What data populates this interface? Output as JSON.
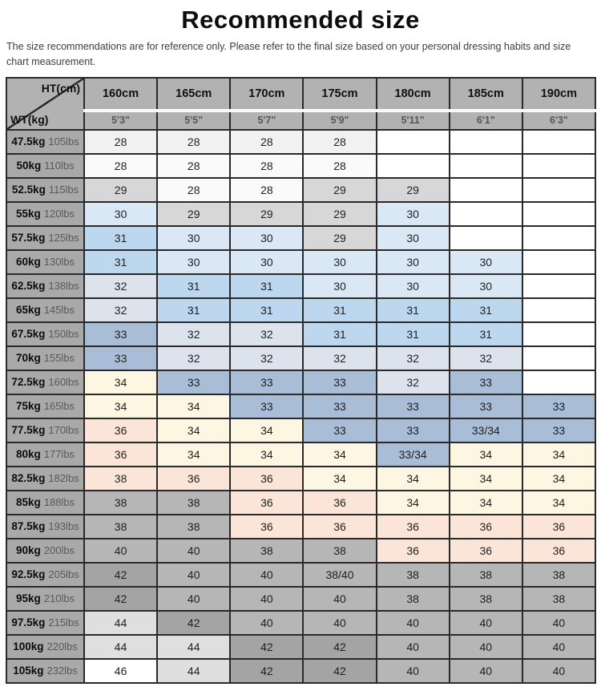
{
  "title": "Recommended size",
  "disclaimer": "The size recommendations are for reference only. Please refer to the final size based on your personal dressing habits and size chart measurement.",
  "table": {
    "corner": {
      "top_label": "HT(cm)",
      "bottom_label": "WT(kg)"
    },
    "height_columns": [
      {
        "cm": "160cm",
        "ft": "5'3\""
      },
      {
        "cm": "165cm",
        "ft": "5'5\""
      },
      {
        "cm": "170cm",
        "ft": "5'7\""
      },
      {
        "cm": "175cm",
        "ft": "5'9\""
      },
      {
        "cm": "180cm",
        "ft": "5'11\""
      },
      {
        "cm": "185cm",
        "ft": "6'1\""
      },
      {
        "cm": "190cm",
        "ft": "6'3\""
      }
    ],
    "palette": {
      "g0": "#f1f1f1",
      "w2": "#fafafa",
      "w": "#ffffff",
      "g1": "#d7d7d7",
      "b0": "#dae8f6",
      "b1": "#bdd7ee",
      "s0": "#dde3ed",
      "s1": "#a9bdd6",
      "c": "#fdf6e3",
      "p": "#fbe5d9",
      "g2": "#b6b6b6",
      "g3": "#a4a4a4",
      "g4": "#dfdfdf"
    },
    "rows": [
      {
        "kg": "47.5kg",
        "lbs": "105lbs",
        "cells": [
          {
            "v": "28",
            "c": "g0"
          },
          {
            "v": "28",
            "c": "g0"
          },
          {
            "v": "28",
            "c": "g0"
          },
          {
            "v": "28",
            "c": "g0"
          },
          {
            "v": "",
            "c": "w"
          },
          {
            "v": "",
            "c": "w"
          },
          {
            "v": "",
            "c": "w"
          }
        ]
      },
      {
        "kg": "50kg",
        "lbs": "110lbs",
        "cells": [
          {
            "v": "28",
            "c": "w2"
          },
          {
            "v": "28",
            "c": "w2"
          },
          {
            "v": "28",
            "c": "w2"
          },
          {
            "v": "28",
            "c": "w2"
          },
          {
            "v": "",
            "c": "w"
          },
          {
            "v": "",
            "c": "w"
          },
          {
            "v": "",
            "c": "w"
          }
        ]
      },
      {
        "kg": "52.5kg",
        "lbs": "115lbs",
        "cells": [
          {
            "v": "29",
            "c": "g1"
          },
          {
            "v": "28",
            "c": "w2"
          },
          {
            "v": "28",
            "c": "w2"
          },
          {
            "v": "29",
            "c": "g1"
          },
          {
            "v": "29",
            "c": "g1"
          },
          {
            "v": "",
            "c": "w"
          },
          {
            "v": "",
            "c": "w"
          }
        ]
      },
      {
        "kg": "55kg",
        "lbs": "120lbs",
        "cells": [
          {
            "v": "30",
            "c": "b0"
          },
          {
            "v": "29",
            "c": "g1"
          },
          {
            "v": "29",
            "c": "g1"
          },
          {
            "v": "29",
            "c": "g1"
          },
          {
            "v": "30",
            "c": "b0"
          },
          {
            "v": "",
            "c": "w"
          },
          {
            "v": "",
            "c": "w"
          }
        ]
      },
      {
        "kg": "57.5kg",
        "lbs": "125lbs",
        "cells": [
          {
            "v": "31",
            "c": "b1"
          },
          {
            "v": "30",
            "c": "b0"
          },
          {
            "v": "30",
            "c": "b0"
          },
          {
            "v": "29",
            "c": "g1"
          },
          {
            "v": "30",
            "c": "b0"
          },
          {
            "v": "",
            "c": "w"
          },
          {
            "v": "",
            "c": "w"
          }
        ]
      },
      {
        "kg": "60kg",
        "lbs": "130lbs",
        "cells": [
          {
            "v": "31",
            "c": "b1"
          },
          {
            "v": "30",
            "c": "b0"
          },
          {
            "v": "30",
            "c": "b0"
          },
          {
            "v": "30",
            "c": "b0"
          },
          {
            "v": "30",
            "c": "b0"
          },
          {
            "v": "30",
            "c": "b0"
          },
          {
            "v": "",
            "c": "w"
          }
        ]
      },
      {
        "kg": "62.5kg",
        "lbs": "138lbs",
        "cells": [
          {
            "v": "32",
            "c": "s0"
          },
          {
            "v": "31",
            "c": "b1"
          },
          {
            "v": "31",
            "c": "b1"
          },
          {
            "v": "30",
            "c": "b0"
          },
          {
            "v": "30",
            "c": "b0"
          },
          {
            "v": "30",
            "c": "b0"
          },
          {
            "v": "",
            "c": "w"
          }
        ]
      },
      {
        "kg": "65kg",
        "lbs": "145lbs",
        "cells": [
          {
            "v": "32",
            "c": "s0"
          },
          {
            "v": "31",
            "c": "b1"
          },
          {
            "v": "31",
            "c": "b1"
          },
          {
            "v": "31",
            "c": "b1"
          },
          {
            "v": "31",
            "c": "b1"
          },
          {
            "v": "31",
            "c": "b1"
          },
          {
            "v": "",
            "c": "w"
          }
        ]
      },
      {
        "kg": "67.5kg",
        "lbs": "150lbs",
        "cells": [
          {
            "v": "33",
            "c": "s1"
          },
          {
            "v": "32",
            "c": "s0"
          },
          {
            "v": "32",
            "c": "s0"
          },
          {
            "v": "31",
            "c": "b1"
          },
          {
            "v": "31",
            "c": "b1"
          },
          {
            "v": "31",
            "c": "b1"
          },
          {
            "v": "",
            "c": "w"
          }
        ]
      },
      {
        "kg": "70kg",
        "lbs": "155lbs",
        "cells": [
          {
            "v": "33",
            "c": "s1"
          },
          {
            "v": "32",
            "c": "s0"
          },
          {
            "v": "32",
            "c": "s0"
          },
          {
            "v": "32",
            "c": "s0"
          },
          {
            "v": "32",
            "c": "s0"
          },
          {
            "v": "32",
            "c": "s0"
          },
          {
            "v": "",
            "c": "w"
          }
        ]
      },
      {
        "kg": "72.5kg",
        "lbs": "160lbs",
        "cells": [
          {
            "v": "34",
            "c": "c"
          },
          {
            "v": "33",
            "c": "s1"
          },
          {
            "v": "33",
            "c": "s1"
          },
          {
            "v": "33",
            "c": "s1"
          },
          {
            "v": "32",
            "c": "s0"
          },
          {
            "v": "33",
            "c": "s1"
          },
          {
            "v": "",
            "c": "w"
          }
        ]
      },
      {
        "kg": "75kg",
        "lbs": "165lbs",
        "cells": [
          {
            "v": "34",
            "c": "c"
          },
          {
            "v": "34",
            "c": "c"
          },
          {
            "v": "33",
            "c": "s1"
          },
          {
            "v": "33",
            "c": "s1"
          },
          {
            "v": "33",
            "c": "s1"
          },
          {
            "v": "33",
            "c": "s1"
          },
          {
            "v": "33",
            "c": "s1"
          }
        ]
      },
      {
        "kg": "77.5kg",
        "lbs": "170lbs",
        "cells": [
          {
            "v": "36",
            "c": "p"
          },
          {
            "v": "34",
            "c": "c"
          },
          {
            "v": "34",
            "c": "c"
          },
          {
            "v": "33",
            "c": "s1"
          },
          {
            "v": "33",
            "c": "s1"
          },
          {
            "v": "33/34",
            "c": "s1"
          },
          {
            "v": "33",
            "c": "s1"
          }
        ]
      },
      {
        "kg": "80kg",
        "lbs": "177lbs",
        "cells": [
          {
            "v": "36",
            "c": "p"
          },
          {
            "v": "34",
            "c": "c"
          },
          {
            "v": "34",
            "c": "c"
          },
          {
            "v": "34",
            "c": "c"
          },
          {
            "v": "33/34",
            "c": "s1"
          },
          {
            "v": "34",
            "c": "c"
          },
          {
            "v": "34",
            "c": "c"
          }
        ]
      },
      {
        "kg": "82.5kg",
        "lbs": "182lbs",
        "cells": [
          {
            "v": "38",
            "c": "p"
          },
          {
            "v": "36",
            "c": "p"
          },
          {
            "v": "36",
            "c": "p"
          },
          {
            "v": "34",
            "c": "c"
          },
          {
            "v": "34",
            "c": "c"
          },
          {
            "v": "34",
            "c": "c"
          },
          {
            "v": "34",
            "c": "c"
          }
        ]
      },
      {
        "kg": "85kg",
        "lbs": "188lbs",
        "cells": [
          {
            "v": "38",
            "c": "g2"
          },
          {
            "v": "38",
            "c": "g2"
          },
          {
            "v": "36",
            "c": "p"
          },
          {
            "v": "36",
            "c": "p"
          },
          {
            "v": "34",
            "c": "c"
          },
          {
            "v": "34",
            "c": "c"
          },
          {
            "v": "34",
            "c": "c"
          }
        ]
      },
      {
        "kg": "87.5kg",
        "lbs": "193lbs",
        "cells": [
          {
            "v": "38",
            "c": "g2"
          },
          {
            "v": "38",
            "c": "g2"
          },
          {
            "v": "36",
            "c": "p"
          },
          {
            "v": "36",
            "c": "p"
          },
          {
            "v": "36",
            "c": "p"
          },
          {
            "v": "36",
            "c": "p"
          },
          {
            "v": "36",
            "c": "p"
          }
        ]
      },
      {
        "kg": "90kg",
        "lbs": "200lbs",
        "cells": [
          {
            "v": "40",
            "c": "g2"
          },
          {
            "v": "40",
            "c": "g2"
          },
          {
            "v": "38",
            "c": "g2"
          },
          {
            "v": "38",
            "c": "g2"
          },
          {
            "v": "36",
            "c": "p"
          },
          {
            "v": "36",
            "c": "p"
          },
          {
            "v": "36",
            "c": "p"
          }
        ]
      },
      {
        "kg": "92.5kg",
        "lbs": "205lbs",
        "cells": [
          {
            "v": "42",
            "c": "g3"
          },
          {
            "v": "40",
            "c": "g2"
          },
          {
            "v": "40",
            "c": "g2"
          },
          {
            "v": "38/40",
            "c": "g2"
          },
          {
            "v": "38",
            "c": "g2"
          },
          {
            "v": "38",
            "c": "g2"
          },
          {
            "v": "38",
            "c": "g2"
          }
        ]
      },
      {
        "kg": "95kg",
        "lbs": "210lbs",
        "cells": [
          {
            "v": "42",
            "c": "g3"
          },
          {
            "v": "40",
            "c": "g2"
          },
          {
            "v": "40",
            "c": "g2"
          },
          {
            "v": "40",
            "c": "g2"
          },
          {
            "v": "38",
            "c": "g2"
          },
          {
            "v": "38",
            "c": "g2"
          },
          {
            "v": "38",
            "c": "g2"
          }
        ]
      },
      {
        "kg": "97.5kg",
        "lbs": "215lbs",
        "cells": [
          {
            "v": "44",
            "c": "g4"
          },
          {
            "v": "42",
            "c": "g3"
          },
          {
            "v": "40",
            "c": "g2"
          },
          {
            "v": "40",
            "c": "g2"
          },
          {
            "v": "40",
            "c": "g2"
          },
          {
            "v": "40",
            "c": "g2"
          },
          {
            "v": "40",
            "c": "g2"
          }
        ]
      },
      {
        "kg": "100kg",
        "lbs": "220lbs",
        "cells": [
          {
            "v": "44",
            "c": "g4"
          },
          {
            "v": "44",
            "c": "g4"
          },
          {
            "v": "42",
            "c": "g3"
          },
          {
            "v": "42",
            "c": "g3"
          },
          {
            "v": "40",
            "c": "g2"
          },
          {
            "v": "40",
            "c": "g2"
          },
          {
            "v": "40",
            "c": "g2"
          }
        ]
      },
      {
        "kg": "105kg",
        "lbs": "232lbs",
        "cells": [
          {
            "v": "46",
            "c": "w"
          },
          {
            "v": "44",
            "c": "g4"
          },
          {
            "v": "42",
            "c": "g3"
          },
          {
            "v": "42",
            "c": "g3"
          },
          {
            "v": "40",
            "c": "g2"
          },
          {
            "v": "40",
            "c": "g2"
          },
          {
            "v": "40",
            "c": "g2"
          }
        ]
      }
    ]
  }
}
